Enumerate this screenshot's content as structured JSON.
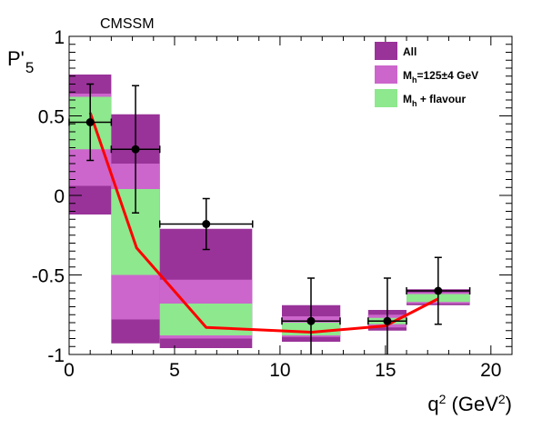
{
  "chart_data": {
    "type": "bar",
    "annotation": "CMSSM",
    "ylabel": "P'5",
    "xlabel": "q² (GeV²)",
    "xlim": [
      0,
      21
    ],
    "ylim": [
      -1,
      1
    ],
    "x_ticks": [
      0,
      5,
      10,
      15,
      20
    ],
    "x_tick_labels": [
      "0",
      "5",
      "10",
      "15",
      "20"
    ],
    "y_ticks": [
      -1,
      -0.5,
      0,
      0.5,
      1
    ],
    "y_tick_labels": [
      "-1",
      "-0.5",
      "0",
      "0.5",
      "1"
    ],
    "legend": {
      "position": "top-right",
      "entries": [
        {
          "label": "All",
          "color": "#993399"
        },
        {
          "label": "Mh=125±4 GeV",
          "color": "#cc66cc"
        },
        {
          "label": "Mh + flavour",
          "color": "#8ee88e"
        }
      ]
    },
    "bins": [
      {
        "x0": 0,
        "x1": 2,
        "all": [
          -0.12,
          0.76
        ],
        "mh": [
          0.06,
          0.64
        ],
        "flavour": [
          0.29,
          0.62
        ]
      },
      {
        "x0": 2,
        "x1": 4.3,
        "all": [
          -0.93,
          0.51
        ],
        "mh": [
          -0.78,
          0.2
        ],
        "flavour": [
          -0.5,
          0.04
        ]
      },
      {
        "x0": 4.3,
        "x1": 8.68,
        "all": [
          -0.96,
          -0.21
        ],
        "mh": [
          -0.9,
          -0.53
        ],
        "flavour": [
          -0.88,
          -0.68
        ]
      },
      {
        "x0": 10.09,
        "x1": 12.86,
        "all": [
          -0.92,
          -0.69
        ],
        "mh": [
          -0.89,
          -0.76
        ],
        "flavour": [
          -0.88,
          -0.8
        ]
      },
      {
        "x0": 14.18,
        "x1": 16,
        "all": [
          -0.85,
          -0.72
        ],
        "mh": [
          -0.83,
          -0.75
        ],
        "flavour": [
          -0.81,
          -0.77
        ]
      },
      {
        "x0": 16,
        "x1": 19,
        "all": [
          -0.69,
          -0.59
        ],
        "mh": [
          -0.68,
          -0.61
        ],
        "flavour": [
          -0.67,
          -0.62
        ]
      }
    ],
    "data_points": [
      {
        "x": 1.0,
        "y": 0.46,
        "xerr": [
          1.0,
          1.0
        ],
        "yerr": [
          0.24,
          0.24
        ]
      },
      {
        "x": 3.15,
        "y": 0.29,
        "xerr": [
          1.15,
          1.15
        ],
        "yerr": [
          0.4,
          0.4
        ]
      },
      {
        "x": 6.5,
        "y": -0.18,
        "xerr": [
          2.2,
          2.2
        ],
        "yerr": [
          0.16,
          0.16
        ]
      },
      {
        "x": 11.47,
        "y": -0.79,
        "xerr": [
          1.38,
          1.38
        ],
        "yerr": [
          0.27,
          0.27
        ]
      },
      {
        "x": 15.09,
        "y": -0.79,
        "xerr": [
          0.91,
          0.91
        ],
        "yerr": [
          0.27,
          0.27
        ]
      },
      {
        "x": 17.5,
        "y": -0.6,
        "xerr": [
          1.5,
          1.5
        ],
        "yerr": [
          0.21,
          0.21
        ]
      }
    ],
    "sm_curve": {
      "color": "#ff0000",
      "x": [
        1.0,
        3.2,
        6.5,
        11.5,
        15.0,
        17.5
      ],
      "y": [
        0.52,
        -0.33,
        -0.83,
        -0.86,
        -0.82,
        -0.65
      ]
    }
  }
}
